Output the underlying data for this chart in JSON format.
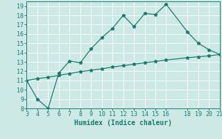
{
  "title": "",
  "xlabel": "Humidex (Indice chaleur)",
  "ylabel": "",
  "background_color": "#cce9e5",
  "grid_color": "#b0d8d4",
  "line_color": "#1a7a6e",
  "xlim": [
    3,
    21
  ],
  "ylim": [
    8,
    19.5
  ],
  "xticks": [
    3,
    4,
    5,
    6,
    7,
    8,
    9,
    10,
    11,
    12,
    13,
    14,
    15,
    16,
    18,
    19,
    20,
    21
  ],
  "yticks": [
    8,
    9,
    10,
    11,
    12,
    13,
    14,
    15,
    16,
    17,
    18,
    19
  ],
  "line1_x": [
    3,
    4,
    5,
    6,
    7,
    8,
    9,
    10,
    11,
    12,
    13,
    14,
    15,
    16,
    18,
    19,
    20,
    21
  ],
  "line1_y": [
    11.0,
    9.0,
    8.0,
    11.8,
    13.1,
    12.9,
    14.4,
    15.6,
    16.6,
    18.0,
    16.8,
    18.2,
    18.1,
    19.2,
    16.2,
    15.0,
    14.3,
    13.8
  ],
  "line2_x": [
    3,
    4,
    5,
    6,
    7,
    8,
    9,
    10,
    11,
    12,
    13,
    14,
    15,
    16,
    18,
    19,
    20,
    21
  ],
  "line2_y": [
    11.0,
    11.2,
    11.35,
    11.55,
    11.75,
    11.95,
    12.1,
    12.25,
    12.45,
    12.6,
    12.75,
    12.9,
    13.05,
    13.2,
    13.45,
    13.55,
    13.65,
    13.8
  ],
  "marker": "*",
  "markersize": 3.5,
  "linewidth": 0.9,
  "font_size": 6,
  "xlabel_font_size": 7
}
